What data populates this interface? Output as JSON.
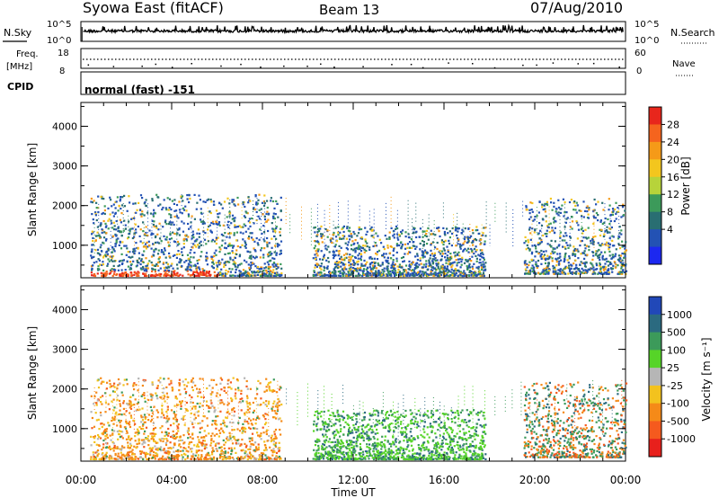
{
  "header": {
    "station": "Syowa East (fitACF)",
    "beam": "Beam 13",
    "date": "07/Aug/2010"
  },
  "summary_panels": {
    "nsky_label": "N.Sky",
    "nsky_ticks": [
      "10^5",
      "10^0"
    ],
    "nsearch_label": "N.Search",
    "freq_label_line1": "Freq.",
    "freq_label_line2": "[MHz]",
    "freq_ticks": [
      "18",
      "8"
    ],
    "nave_ticks": [
      "60",
      "0"
    ],
    "nave_label": "Nave",
    "cpid_label": "CPID",
    "cpid_text": "normal (fast) -151"
  },
  "chart_data": [
    {
      "type": "heatmap",
      "title": "",
      "ylabel": "Slant Range [km]",
      "xlabel": "",
      "ylim": [
        180,
        4600
      ],
      "yticks": [
        "4000",
        "3000",
        "2000",
        "1000"
      ],
      "xlim": [
        0,
        24
      ],
      "colorbar_label": "Power [dB]",
      "colorbar_ticks": [
        "28",
        "24",
        "20",
        "16",
        "12",
        "8",
        "4"
      ],
      "colorbar_colors": [
        "#e8261c",
        "#f5641e",
        "#f59a18",
        "#f3c61e",
        "#b7d33a",
        "#3c9a5a",
        "#296e72",
        "#2352b4",
        "#1c28f0"
      ],
      "scatter_regions": [
        {
          "t0": 0.4,
          "t1": 8.8,
          "r0": 250,
          "r1": 2300,
          "dominant": "low power, bands of yellow/orange near 1000 km and red near 300 km"
        },
        {
          "t0": 10.2,
          "t1": 17.8,
          "r0": 250,
          "r1": 1500,
          "dominant": "low power"
        },
        {
          "t0": 19.5,
          "t1": 24.0,
          "r0": 300,
          "r1": 2200,
          "dominant": "mixed power, red/orange near 700 km"
        }
      ]
    },
    {
      "type": "heatmap",
      "title": "",
      "ylabel": "Slant Range [km]",
      "xlabel": "Time UT",
      "ylim": [
        180,
        4600
      ],
      "yticks": [
        "4000",
        "3000",
        "2000",
        "1000"
      ],
      "xlim": [
        0,
        24
      ],
      "xticks": [
        "00:00",
        "04:00",
        "08:00",
        "12:00",
        "16:00",
        "20:00",
        "00:00"
      ],
      "colorbar_label": "Velocity [m s⁻¹]",
      "colorbar_ticks": [
        "1000",
        "500",
        "100",
        "25",
        "-25",
        "-100",
        "-500",
        "-1000"
      ],
      "colorbar_colors": [
        "#2148b8",
        "#2b6a80",
        "#3c9a5a",
        "#56d428",
        "#b6b6b6",
        "#f3c21e",
        "#f58a18",
        "#f55a1e",
        "#e8201c"
      ],
      "scatter_regions": [
        {
          "t0": 0.4,
          "t1": 8.8,
          "r0": 250,
          "r1": 2300,
          "dominant": "negative (orange/yellow)"
        },
        {
          "t0": 10.2,
          "t1": 17.8,
          "r0": 250,
          "r1": 1500,
          "dominant": "positive (green)"
        },
        {
          "t0": 19.5,
          "t1": 24.0,
          "r0": 300,
          "r1": 2200,
          "dominant": "mixed, green and orange"
        }
      ]
    }
  ]
}
